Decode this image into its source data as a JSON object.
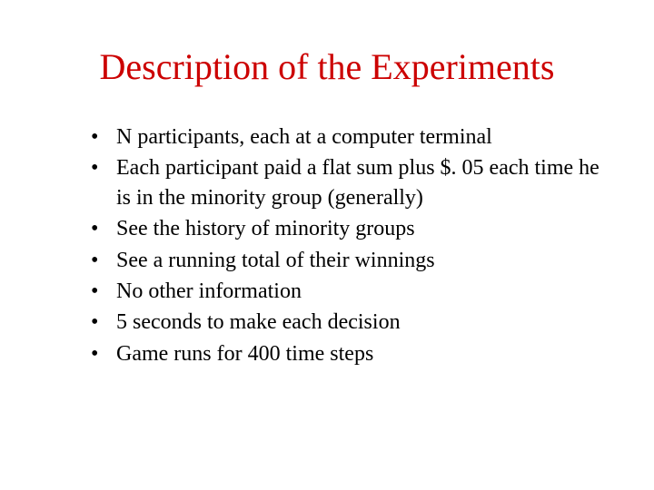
{
  "title": {
    "text": "Description of the Experiments",
    "color": "#cc0000",
    "fontsize": 40
  },
  "bullets": {
    "items": [
      "N participants, each at a computer terminal",
      "Each participant paid a flat sum plus $. 05 each time he is in the minority group (generally)",
      "See the history of minority groups",
      "See a running total of their winnings",
      "No other information",
      "5 seconds to make each decision",
      "Game runs for 400 time steps"
    ],
    "color": "#000000",
    "fontsize": 24
  },
  "background_color": "#ffffff"
}
